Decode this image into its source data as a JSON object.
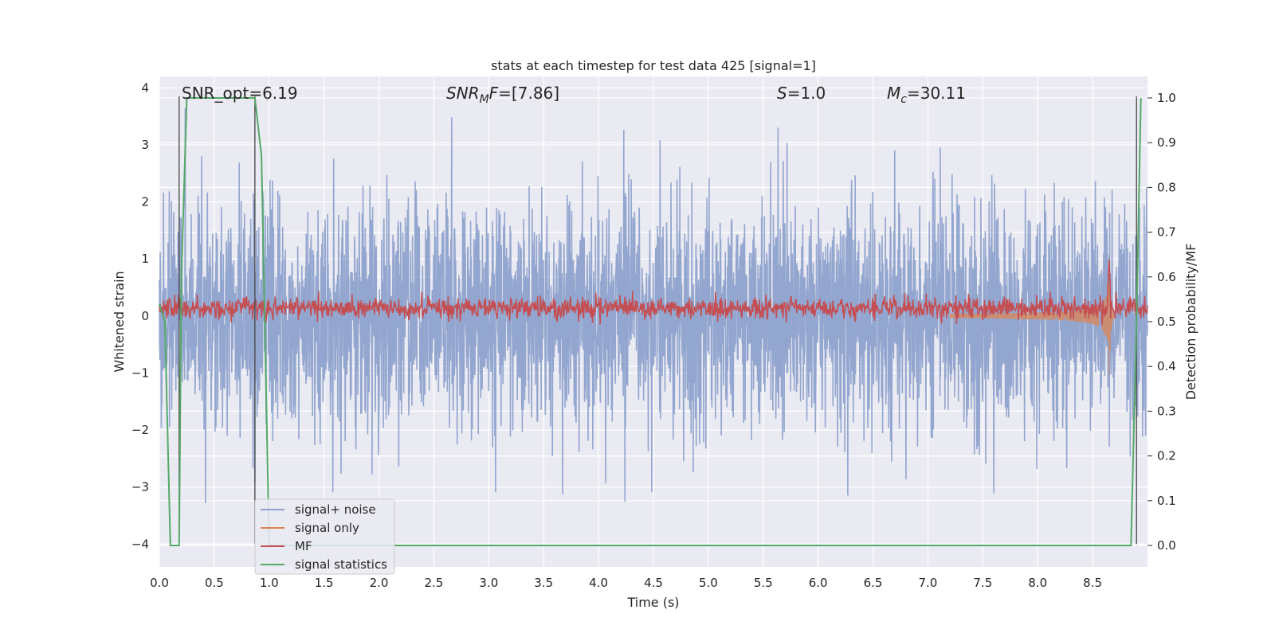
{
  "chart_data": {
    "type": "line",
    "title": "stats at each timestep for test data 425 [signal=1]",
    "xlabel": "Time (s)",
    "ylabel_left": "Whitened strain",
    "ylabel_right": "Detection probability/MF",
    "xlim": [
      0.0,
      9.0
    ],
    "ylim_left": [
      -4.4,
      4.2
    ],
    "ylim_right": [
      -0.048,
      1.048
    ],
    "x_ticks": [
      "0.0",
      "0.5",
      "1.0",
      "1.5",
      "2.0",
      "2.5",
      "3.0",
      "3.5",
      "4.0",
      "4.5",
      "5.0",
      "5.5",
      "6.0",
      "6.5",
      "7.0",
      "7.5",
      "8.0",
      "8.5"
    ],
    "y_ticks_left": [
      "−4",
      "−3",
      "−2",
      "−1",
      "0",
      "1",
      "2",
      "3",
      "4"
    ],
    "y_ticks_right": [
      "0.0",
      "0.1",
      "0.2",
      "0.3",
      "0.4",
      "0.5",
      "0.6",
      "0.7",
      "0.8",
      "0.9",
      "1.0"
    ],
    "grid": true,
    "legend_position": "lower-left",
    "annotations": [
      {
        "id": "snr-opt",
        "text": "SNR_opt=6.19",
        "math": false
      },
      {
        "id": "snr-mf",
        "base": "SNR",
        "sub": "M",
        "rest": "F=[7.86]",
        "math": true
      },
      {
        "id": "s-value",
        "base": "S",
        "rest": "=1.0",
        "math": true
      },
      {
        "id": "mc-value",
        "base": "M",
        "sub": "c",
        "rest": "=30.11",
        "math": true
      }
    ],
    "vertical_markers_s": [
      0.18,
      0.87,
      8.9
    ],
    "series": [
      {
        "name": "signal+ noise",
        "color": "#8ea2cc",
        "axis": "left",
        "description_type": "noise",
        "sigma": 1.0,
        "range_y": [
          -4.0,
          3.9
        ]
      },
      {
        "name": "signal only",
        "color": "#dd8452",
        "axis": "left",
        "description_type": "chirp",
        "merger_time": 8.65,
        "peak_amplitude": 1.35
      },
      {
        "name": "MF",
        "color": "#c44e52",
        "axis": "right",
        "description_type": "noisy-level",
        "mean": 0.53,
        "spike_at": 8.65,
        "spike_value": 0.64
      },
      {
        "name": "signal statistics",
        "color": "#55a868",
        "axis": "right",
        "x": [
          0.0,
          0.05,
          0.1,
          0.13,
          0.18,
          0.2,
          0.25,
          0.3,
          0.87,
          0.93,
          1.0,
          1.05,
          8.85,
          8.9,
          8.94
        ],
        "y": [
          0.54,
          0.5,
          0.0,
          0.0,
          0.0,
          0.6,
          1.0,
          1.0,
          1.0,
          0.87,
          0.0,
          0.0,
          0.0,
          0.5,
          1.0
        ]
      }
    ]
  }
}
